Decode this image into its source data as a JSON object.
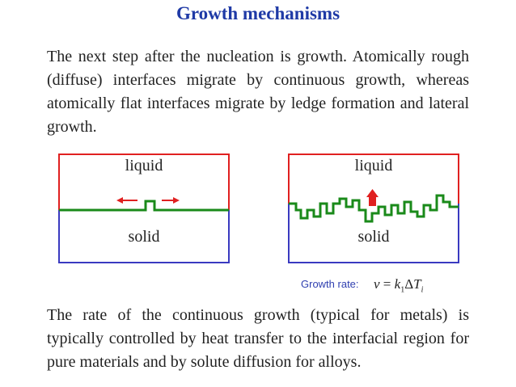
{
  "title": "Growth mechanisms",
  "intro_text": "The next step after the nucleation is growth. Atomically rough (diffuse) interfaces migrate by continuous growth, whereas atomically flat interfaces migrate by ledge formation and lateral growth.",
  "diagram_left": {
    "top_label": "liquid",
    "bottom_label": "solid"
  },
  "diagram_right": {
    "top_label": "liquid",
    "bottom_label": "solid"
  },
  "growth_rate": {
    "label": "Growth rate:",
    "v": "v",
    "eq": " = ",
    "k": "k",
    "k_sub": "1",
    "delta": "Δ",
    "T": "T",
    "T_sub": "i"
  },
  "closing_text": "The rate of the continuous growth (typical for metals) is typically controlled by heat transfer to the interfacial region for pure materials and by solute diffusion for alloys.",
  "colors": {
    "title": "#1f3aa6",
    "liquid_border": "#e02020",
    "solid_border": "#3a3ac0",
    "interface": "#1a8a1a",
    "arrow": "#e02020"
  }
}
